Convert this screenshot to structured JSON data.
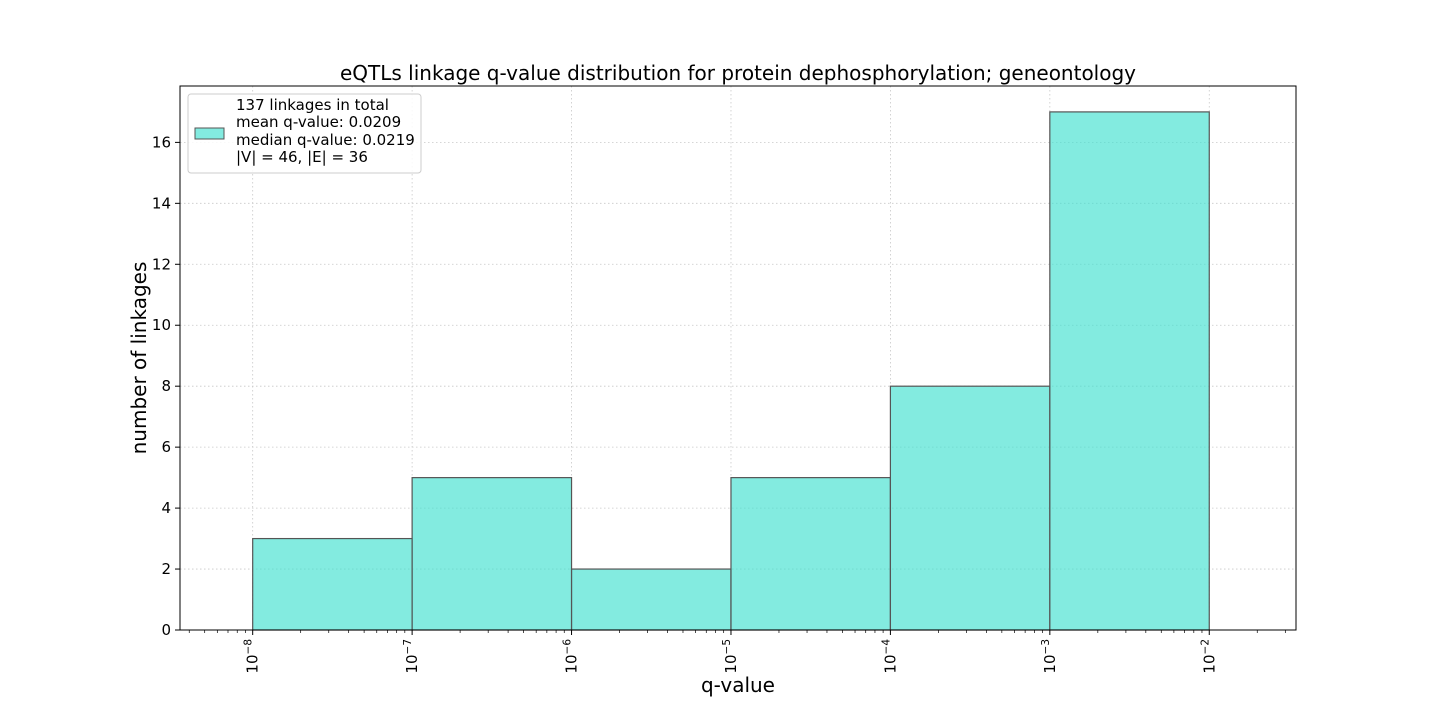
{
  "chart_data": {
    "type": "bar",
    "title": "eQTLs linkage q-value distribution for protein dephosphorylation; geneontology",
    "xlabel": "q-value",
    "ylabel": "number of linkages",
    "xscale": "log",
    "xlim": [
      3.5e-09,
      0.035
    ],
    "ylim": [
      0,
      17.85
    ],
    "bins": [
      {
        "x0": 1e-08,
        "x1": 1e-07,
        "value": 3
      },
      {
        "x0": 1e-07,
        "x1": 1e-06,
        "value": 5
      },
      {
        "x0": 1e-06,
        "x1": 1e-05,
        "value": 2
      },
      {
        "x0": 1e-05,
        "x1": 0.0001,
        "value": 5
      },
      {
        "x0": 0.0001,
        "x1": 0.001,
        "value": 8
      },
      {
        "x0": 0.001,
        "x1": 0.01,
        "value": 17
      }
    ],
    "yticks": [
      "0",
      "2",
      "4",
      "6",
      "8",
      "10",
      "12",
      "14",
      "16"
    ],
    "xticks": [
      {
        "base": "10",
        "exp": "−8",
        "value": 1e-08
      },
      {
        "base": "10",
        "exp": "−7",
        "value": 1e-07
      },
      {
        "base": "10",
        "exp": "−6",
        "value": 1e-06
      },
      {
        "base": "10",
        "exp": "−5",
        "value": 1e-05
      },
      {
        "base": "10",
        "exp": "−4",
        "value": 0.0001
      },
      {
        "base": "10",
        "exp": "−3",
        "value": 0.001
      },
      {
        "base": "10",
        "exp": "−2",
        "value": 0.01
      }
    ],
    "grid": true,
    "legend": {
      "placement": "top-left",
      "lines": [
        "137 linkages in total",
        "mean q-value: 0.0209",
        "median q-value: 0.0219",
        "|V| = 46, |E| = 36"
      ]
    },
    "colors": {
      "bar_fill": "#40e0d0",
      "bar_edge": "#555555",
      "grid": "#c8c8c8"
    }
  }
}
